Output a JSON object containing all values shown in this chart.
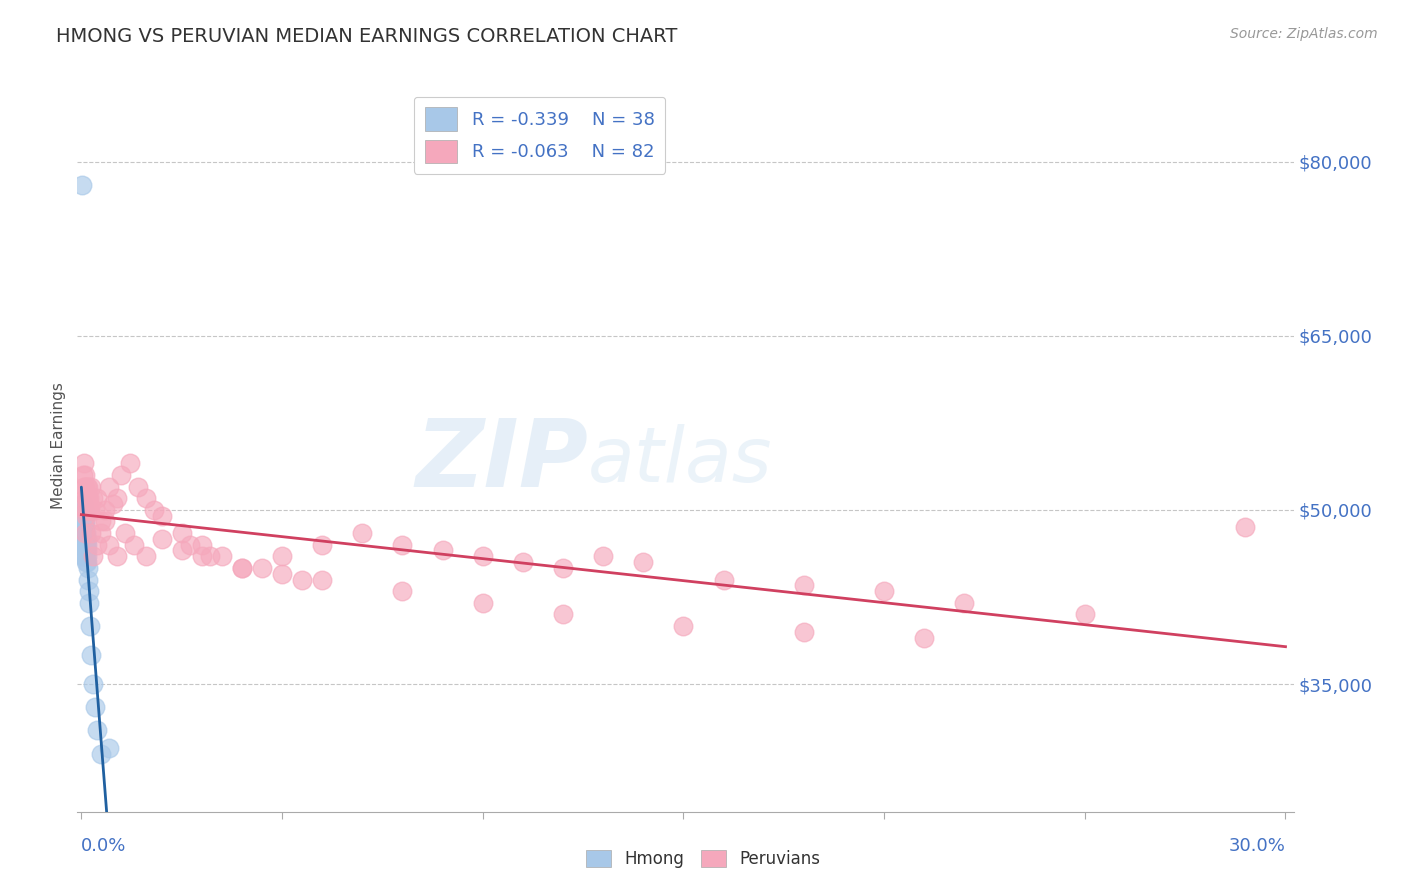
{
  "title": "HMONG VS PERUVIAN MEDIAN EARNINGS CORRELATION CHART",
  "source": "Source: ZipAtlas.com",
  "ylabel": "Median Earnings",
  "yticks": [
    35000,
    50000,
    65000,
    80000
  ],
  "ytick_labels": [
    "$35,000",
    "$50,000",
    "$65,000",
    "$80,000"
  ],
  "xlim": [
    -0.001,
    0.302
  ],
  "ylim": [
    24000,
    87000
  ],
  "hmong_R": -0.339,
  "hmong_N": 38,
  "peruvian_R": -0.063,
  "peruvian_N": 82,
  "hmong_color": "#a8c8e8",
  "peruvian_color": "#f5a8bc",
  "hmong_line_color": "#2060a0",
  "peruvian_line_color": "#d04060",
  "background_color": "#ffffff",
  "hmong_x": [
    0.0004,
    0.0005,
    0.0005,
    0.0006,
    0.0006,
    0.0007,
    0.0007,
    0.0008,
    0.0008,
    0.0009,
    0.0009,
    0.001,
    0.001,
    0.001,
    0.0011,
    0.0011,
    0.0012,
    0.0012,
    0.0013,
    0.0013,
    0.0014,
    0.0014,
    0.0015,
    0.0016,
    0.0017,
    0.0018,
    0.002,
    0.0022,
    0.0025,
    0.003,
    0.0035,
    0.004,
    0.005,
    0.007,
    0.0003,
    0.0003,
    0.0003,
    0.0001
  ],
  "hmong_y": [
    48000,
    47500,
    46000,
    49000,
    47000,
    50000,
    48000,
    47000,
    46000,
    48500,
    47000,
    49000,
    47500,
    46000,
    48000,
    46500,
    47000,
    45500,
    47500,
    46000,
    47000,
    45500,
    46500,
    45000,
    44000,
    43000,
    42000,
    40000,
    37500,
    35000,
    33000,
    31000,
    29000,
    29500,
    50500,
    49000,
    48000,
    78000
  ],
  "peruvian_x": [
    0.0005,
    0.0006,
    0.0007,
    0.0008,
    0.0009,
    0.001,
    0.0011,
    0.0012,
    0.0013,
    0.0014,
    0.0015,
    0.0016,
    0.0017,
    0.0018,
    0.002,
    0.0022,
    0.0025,
    0.003,
    0.0035,
    0.004,
    0.005,
    0.006,
    0.007,
    0.008,
    0.009,
    0.01,
    0.012,
    0.014,
    0.016,
    0.018,
    0.02,
    0.025,
    0.03,
    0.035,
    0.04,
    0.05,
    0.06,
    0.07,
    0.08,
    0.09,
    0.1,
    0.11,
    0.12,
    0.13,
    0.14,
    0.16,
    0.18,
    0.2,
    0.22,
    0.25,
    0.0008,
    0.001,
    0.0012,
    0.0015,
    0.002,
    0.0025,
    0.003,
    0.004,
    0.005,
    0.006,
    0.007,
    0.009,
    0.011,
    0.013,
    0.016,
    0.02,
    0.025,
    0.03,
    0.04,
    0.05,
    0.06,
    0.08,
    0.1,
    0.12,
    0.15,
    0.18,
    0.21,
    0.29,
    0.027,
    0.032,
    0.045,
    0.055
  ],
  "peruvian_y": [
    53000,
    52000,
    54000,
    51000,
    53000,
    52000,
    51000,
    50000,
    52000,
    51000,
    50500,
    52000,
    51000,
    50000,
    51000,
    50000,
    52000,
    51000,
    50000,
    51000,
    49000,
    50000,
    52000,
    50500,
    51000,
    53000,
    54000,
    52000,
    51000,
    50000,
    49500,
    48000,
    47000,
    46000,
    45000,
    46000,
    47000,
    48000,
    47000,
    46500,
    46000,
    45500,
    45000,
    46000,
    45500,
    44000,
    43500,
    43000,
    42000,
    41000,
    48000,
    50000,
    49500,
    51000,
    50000,
    48000,
    46000,
    47000,
    48000,
    49000,
    47000,
    46000,
    48000,
    47000,
    46000,
    47500,
    46500,
    46000,
    45000,
    44500,
    44000,
    43000,
    42000,
    41000,
    40000,
    39500,
    39000,
    48500,
    47000,
    46000,
    45000,
    44000
  ],
  "xtick_positions": [
    0.0,
    0.05,
    0.1,
    0.15,
    0.2,
    0.25,
    0.3
  ]
}
